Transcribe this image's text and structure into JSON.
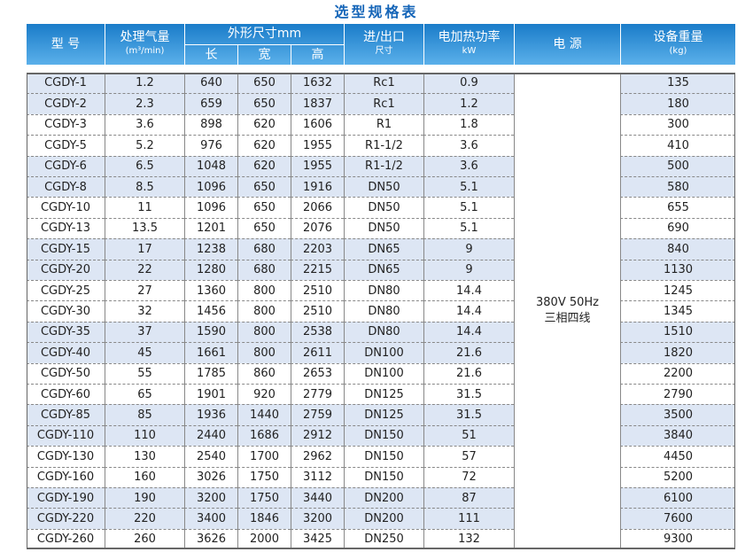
{
  "title": "选型规格表",
  "table": {
    "header": {
      "model": "型 号",
      "flow": "处理气量",
      "flow_unit": "(m³/min)",
      "dims": "外形尺寸mm",
      "length": "长",
      "width": "宽",
      "height": "高",
      "port": "进/出口",
      "port_sub": "尺寸",
      "power": "电加热功率",
      "power_unit": "kW",
      "supply": "电 源",
      "weight": "设备重量",
      "weight_unit": "(kg)"
    },
    "power_supply": [
      "380V 50Hz",
      "三相四线"
    ],
    "rows": [
      [
        "CGDY-1",
        1.2,
        640,
        650,
        1632,
        "Rc1",
        0.9,
        135
      ],
      [
        "CGDY-2",
        2.3,
        659,
        650,
        1837,
        "Rc1",
        1.2,
        180
      ],
      [
        "CGDY-3",
        3.6,
        898,
        620,
        1606,
        "R1",
        1.8,
        300
      ],
      [
        "CGDY-5",
        5.2,
        976,
        620,
        1955,
        "R1-1/2",
        3.6,
        410
      ],
      [
        "CGDY-6",
        6.5,
        1048,
        620,
        1955,
        "R1-1/2",
        3.6,
        500
      ],
      [
        "CGDY-8",
        8.5,
        1096,
        650,
        1916,
        "DN50",
        5.1,
        580
      ],
      [
        "CGDY-10",
        11,
        1096,
        650,
        2066,
        "DN50",
        5.1,
        655
      ],
      [
        "CGDY-13",
        13.5,
        1201,
        650,
        2076,
        "DN50",
        5.1,
        690
      ],
      [
        "CGDY-15",
        17,
        1238,
        680,
        2203,
        "DN65",
        9,
        840
      ],
      [
        "CGDY-20",
        22,
        1280,
        680,
        2215,
        "DN65",
        9,
        1130
      ],
      [
        "CGDY-25",
        27,
        1360,
        800,
        2510,
        "DN80",
        14.4,
        1245
      ],
      [
        "CGDY-30",
        32,
        1456,
        800,
        2510,
        "DN80",
        14.4,
        1345
      ],
      [
        "CGDY-35",
        37,
        1590,
        800,
        2538,
        "DN80",
        14.4,
        1510
      ],
      [
        "CGDY-40",
        45,
        1661,
        800,
        2611,
        "DN100",
        21.6,
        1820
      ],
      [
        "CGDY-50",
        55,
        1785,
        860,
        2653,
        "DN100",
        21.6,
        2200
      ],
      [
        "CGDY-60",
        65,
        1901,
        920,
        2779,
        "DN125",
        31.5,
        2790
      ],
      [
        "CGDY-85",
        85,
        1936,
        1440,
        2759,
        "DN125",
        31.5,
        3500
      ],
      [
        "CGDY-110",
        110,
        2440,
        1686,
        2912,
        "DN150",
        51,
        3840
      ],
      [
        "CGDY-130",
        130,
        2540,
        1700,
        2962,
        "DN150",
        57,
        4450
      ],
      [
        "CGDY-160",
        160,
        3026,
        1750,
        3112,
        "DN150",
        72,
        5200
      ],
      [
        "CGDY-190",
        190,
        3200,
        1750,
        3440,
        "DN200",
        87,
        6100
      ],
      [
        "CGDY-220",
        220,
        3400,
        1846,
        3200,
        "DN200",
        111,
        7600
      ],
      [
        "CGDY-260",
        260,
        3626,
        2000,
        3425,
        "DN250",
        132,
        9300
      ]
    ]
  }
}
